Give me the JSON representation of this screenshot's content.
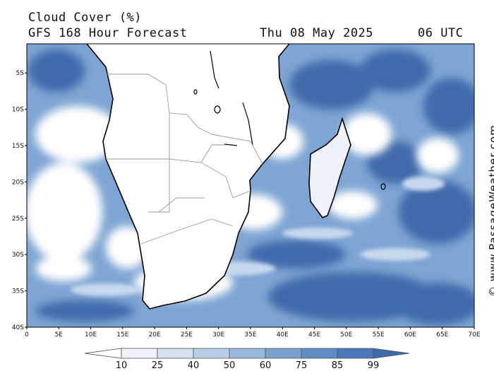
{
  "header": {
    "title": "Cloud Cover (%)",
    "subtitle": "GFS 168 Hour Forecast",
    "date": "Thu 08 May 2025",
    "time": "06 UTC"
  },
  "credit": "© www.PassageWeather.com",
  "map": {
    "lat_ticks": [
      "5S",
      "10S",
      "15S",
      "20S",
      "25S",
      "30S",
      "35S",
      "40S"
    ],
    "lat_values": [
      -5,
      -10,
      -15,
      -20,
      -25,
      -30,
      -35,
      -40
    ],
    "lon_ticks": [
      "0",
      "5E",
      "10E",
      "15E",
      "20E",
      "25E",
      "30E",
      "35E",
      "40E",
      "45E",
      "50E",
      "55E",
      "60E",
      "65E",
      "70E"
    ],
    "lon_values": [
      0,
      5,
      10,
      15,
      20,
      25,
      30,
      35,
      40,
      45,
      50,
      55,
      60,
      65,
      70
    ],
    "lon_range": [
      0,
      70
    ],
    "lat_range": [
      -1,
      -40
    ]
  },
  "colorbar": {
    "labels": [
      "10",
      "25",
      "40",
      "50",
      "60",
      "75",
      "85",
      "99"
    ],
    "colors": [
      "#ffffff",
      "#eef3fa",
      "#d6e3f2",
      "#b8cee8",
      "#98b8dc",
      "#7aa2d0",
      "#5e8cc4",
      "#4a78b6",
      "#3f6aaa"
    ]
  }
}
